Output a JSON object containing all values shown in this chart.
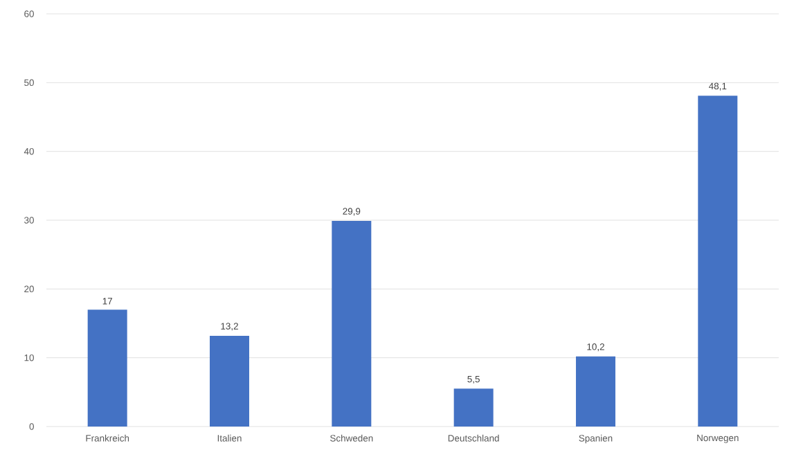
{
  "chart_data": {
    "type": "bar",
    "categories": [
      "Frankreich",
      "Italien",
      "Schweden",
      "Deutschland",
      "Spanien",
      "Norwegen"
    ],
    "values": [
      17,
      13.2,
      29.9,
      5.5,
      10.2,
      48.1
    ],
    "value_labels": [
      "17",
      "13,2",
      "29,9",
      "5,5",
      "10,2",
      "48,1"
    ],
    "color": "#4472c4",
    "ylim": [
      0,
      60
    ],
    "yticks": [
      0,
      10,
      20,
      30,
      40,
      50,
      60
    ],
    "grid": "y"
  }
}
